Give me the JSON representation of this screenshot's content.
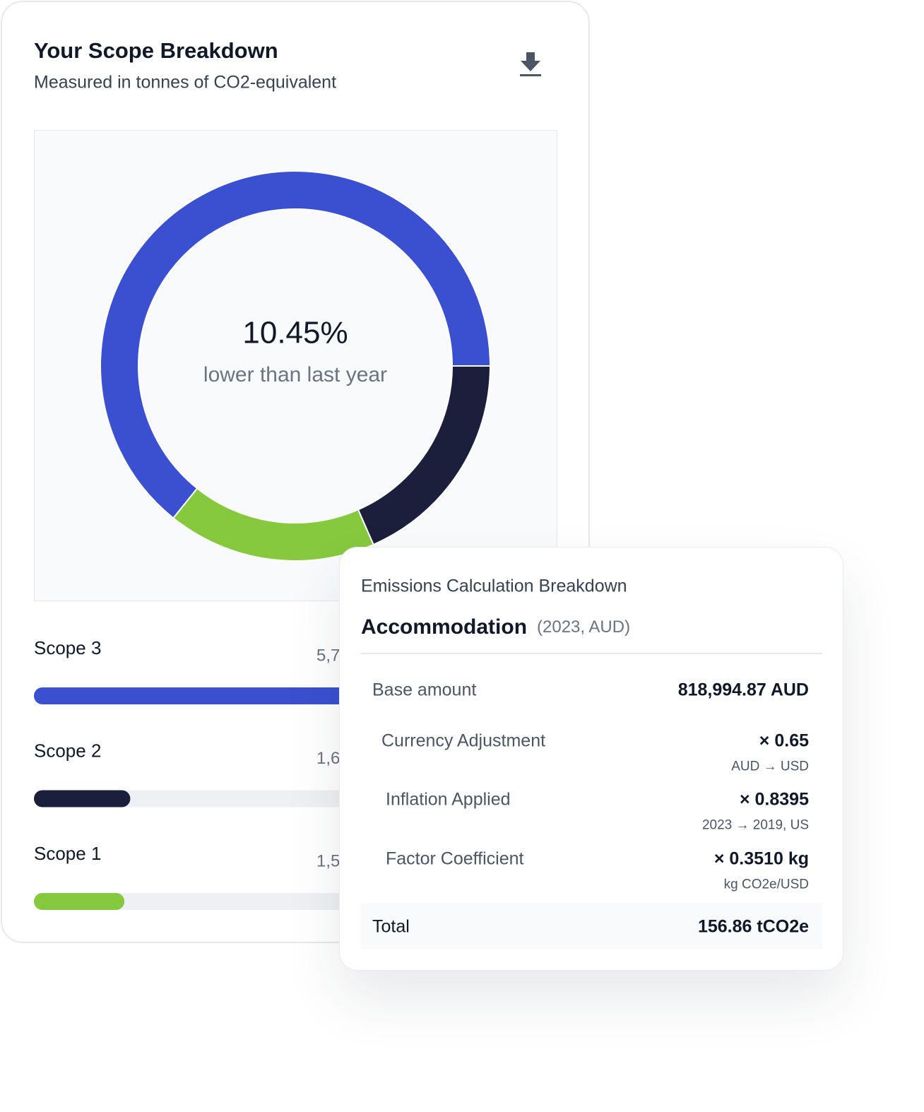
{
  "chart_data": {
    "type": "donut",
    "title": "Your Scope Breakdown",
    "subtitle": "Measured in tonnes of CO2-equivalent",
    "center_value": "10.45%",
    "center_label": "lower than last year",
    "categories": [
      "Scope 3",
      "Scope 2",
      "Scope 1"
    ],
    "values": [
      5750,
      1650,
      1550
    ],
    "value_labels": [
      "5,7",
      "1,6",
      "1,5"
    ],
    "colors": [
      "#3a50d0",
      "#1b1f3b",
      "#86c93f"
    ]
  },
  "breakdown": {
    "title": "Emissions Calculation Breakdown",
    "item": "Accommodation",
    "item_note": "(2023, AUD)",
    "rows": [
      {
        "label": "Base amount",
        "value": "818,994.87 AUD"
      },
      {
        "label": "Currency Adjustment",
        "value": "× 0.65",
        "note": "AUD → USD"
      },
      {
        "label": "Inflation Applied",
        "value": "× 0.8395",
        "note": "2023 → 2019, US"
      },
      {
        "label": "Factor Coefficient",
        "value": "× 0.3510 kg",
        "note": "kg CO2e/USD"
      }
    ],
    "total": {
      "label": "Total",
      "value": "156.86 tCO2e"
    }
  }
}
